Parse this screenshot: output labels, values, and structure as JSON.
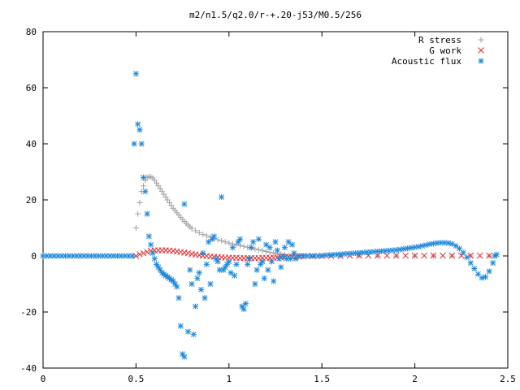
{
  "chart_data": {
    "type": "scatter",
    "title": "m2/n1.5/q2.0/r-+.20-j53/M0.5/256",
    "xlabel": "",
    "ylabel": "",
    "xlim": [
      0,
      2.5
    ],
    "ylim": [
      -40,
      80
    ],
    "x_ticks": [
      "0",
      "0.5",
      "1",
      "1.5",
      "2",
      "2.5"
    ],
    "y_ticks": [
      "80",
      "60",
      "40",
      "20",
      "0",
      "-20",
      "-40"
    ],
    "grid": false,
    "legend_position": "top-right",
    "series": [
      {
        "name": "R stress",
        "marker": "plus",
        "color": "#a0a0a0",
        "points": [
          [
            0.5,
            10
          ],
          [
            0.51,
            15
          ],
          [
            0.52,
            19
          ],
          [
            0.53,
            23
          ],
          [
            0.54,
            25
          ],
          [
            0.55,
            27
          ],
          [
            0.56,
            28
          ],
          [
            0.57,
            28.3
          ],
          [
            0.58,
            28.2
          ],
          [
            0.59,
            27.8
          ],
          [
            0.6,
            27.0
          ],
          [
            0.61,
            26.0
          ],
          [
            0.62,
            25.0
          ],
          [
            0.63,
            24.0
          ],
          [
            0.64,
            23.0
          ],
          [
            0.65,
            22.0
          ],
          [
            0.66,
            21.0
          ],
          [
            0.67,
            20.0
          ],
          [
            0.68,
            19.0
          ],
          [
            0.69,
            18.0
          ],
          [
            0.7,
            17.0
          ],
          [
            0.71,
            16.2
          ],
          [
            0.72,
            15.4
          ],
          [
            0.73,
            14.6
          ],
          [
            0.74,
            13.8
          ],
          [
            0.75,
            13.0
          ],
          [
            0.76,
            12.3
          ],
          [
            0.77,
            11.6
          ],
          [
            0.78,
            11.0
          ],
          [
            0.79,
            10.4
          ],
          [
            0.8,
            9.8
          ],
          [
            0.82,
            9.0
          ],
          [
            0.84,
            8.3
          ],
          [
            0.86,
            7.7
          ],
          [
            0.88,
            7.2
          ],
          [
            0.9,
            6.7
          ],
          [
            0.92,
            6.2
          ],
          [
            0.94,
            5.8
          ],
          [
            0.96,
            5.4
          ],
          [
            0.98,
            5.0
          ],
          [
            1.0,
            4.6
          ],
          [
            1.02,
            4.3
          ],
          [
            1.04,
            4.0
          ],
          [
            1.06,
            3.7
          ],
          [
            1.08,
            3.4
          ],
          [
            1.1,
            3.1
          ],
          [
            1.12,
            2.8
          ],
          [
            1.14,
            2.5
          ],
          [
            1.16,
            2.2
          ],
          [
            1.18,
            1.9
          ],
          [
            1.2,
            1.6
          ],
          [
            1.22,
            1.3
          ],
          [
            1.24,
            1.0
          ],
          [
            1.26,
            0.8
          ],
          [
            1.28,
            0.6
          ],
          [
            1.3,
            0.4
          ],
          [
            1.32,
            0.2
          ],
          [
            1.34,
            0.1
          ],
          [
            1.36,
            0.0
          ],
          [
            1.4,
            0.0
          ],
          [
            1.5,
            0.0
          ],
          [
            1.6,
            0.0
          ],
          [
            1.7,
            0.0
          ],
          [
            1.8,
            0.0
          ],
          [
            1.9,
            0.0
          ],
          [
            2.0,
            0.0
          ],
          [
            2.1,
            0.0
          ],
          [
            2.2,
            0.0
          ],
          [
            2.3,
            0.0
          ],
          [
            2.4,
            0.0
          ]
        ]
      },
      {
        "name": "G work",
        "marker": "cross",
        "color": "#e03030",
        "points": [
          [
            0.5,
            0
          ],
          [
            0.52,
            0.6
          ],
          [
            0.54,
            1.0
          ],
          [
            0.56,
            1.4
          ],
          [
            0.58,
            1.8
          ],
          [
            0.6,
            2.0
          ],
          [
            0.62,
            2.0
          ],
          [
            0.64,
            2.0
          ],
          [
            0.66,
            2.0
          ],
          [
            0.68,
            1.9
          ],
          [
            0.7,
            1.8
          ],
          [
            0.72,
            1.6
          ],
          [
            0.74,
            1.4
          ],
          [
            0.76,
            1.2
          ],
          [
            0.78,
            1.0
          ],
          [
            0.8,
            0.7
          ],
          [
            0.82,
            0.5
          ],
          [
            0.84,
            0.3
          ],
          [
            0.86,
            0.1
          ],
          [
            0.88,
            0.0
          ],
          [
            0.9,
            -0.2
          ],
          [
            0.92,
            -0.3
          ],
          [
            0.94,
            -0.4
          ],
          [
            0.96,
            -0.5
          ],
          [
            0.98,
            -0.6
          ],
          [
            1.0,
            -0.6
          ],
          [
            1.02,
            -0.7
          ],
          [
            1.04,
            -0.7
          ],
          [
            1.06,
            -0.8
          ],
          [
            1.08,
            -0.8
          ],
          [
            1.1,
            -0.8
          ],
          [
            1.12,
            -0.8
          ],
          [
            1.14,
            -0.8
          ],
          [
            1.16,
            -0.8
          ],
          [
            1.18,
            -0.7
          ],
          [
            1.2,
            -0.7
          ],
          [
            1.22,
            -0.7
          ],
          [
            1.24,
            -0.6
          ],
          [
            1.26,
            -0.6
          ],
          [
            1.28,
            -0.5
          ],
          [
            1.3,
            -0.4
          ],
          [
            1.32,
            -0.4
          ],
          [
            1.34,
            -0.3
          ],
          [
            1.36,
            -0.3
          ],
          [
            1.38,
            -0.2
          ],
          [
            1.4,
            -0.2
          ],
          [
            1.45,
            -0.1
          ],
          [
            1.5,
            0.0
          ],
          [
            1.55,
            0.0
          ],
          [
            1.6,
            0.0
          ],
          [
            1.65,
            0.1
          ],
          [
            1.7,
            0.1
          ],
          [
            1.75,
            0.1
          ],
          [
            1.8,
            0.1
          ],
          [
            1.85,
            0.1
          ],
          [
            1.9,
            0.1
          ],
          [
            1.95,
            0.1
          ],
          [
            2.0,
            0.1
          ],
          [
            2.05,
            0.1
          ],
          [
            2.1,
            0.1
          ],
          [
            2.15,
            0.1
          ],
          [
            2.2,
            0.1
          ],
          [
            2.25,
            0.1
          ],
          [
            2.3,
            0.1
          ],
          [
            2.35,
            0.1
          ],
          [
            2.4,
            0.1
          ]
        ]
      },
      {
        "name": "Acoustic flux",
        "marker": "star",
        "color": "#1e88d8",
        "points": [
          [
            0.0,
            0
          ],
          [
            0.02,
            0
          ],
          [
            0.04,
            0
          ],
          [
            0.06,
            0
          ],
          [
            0.08,
            0
          ],
          [
            0.1,
            0
          ],
          [
            0.12,
            0
          ],
          [
            0.14,
            0
          ],
          [
            0.16,
            0
          ],
          [
            0.18,
            0
          ],
          [
            0.2,
            0
          ],
          [
            0.22,
            0
          ],
          [
            0.24,
            0
          ],
          [
            0.26,
            0
          ],
          [
            0.28,
            0
          ],
          [
            0.3,
            0
          ],
          [
            0.32,
            0
          ],
          [
            0.34,
            0
          ],
          [
            0.36,
            0
          ],
          [
            0.38,
            0
          ],
          [
            0.4,
            0
          ],
          [
            0.42,
            0
          ],
          [
            0.44,
            0
          ],
          [
            0.46,
            0
          ],
          [
            0.48,
            0
          ],
          [
            0.49,
            40
          ],
          [
            0.5,
            65
          ],
          [
            0.51,
            47
          ],
          [
            0.52,
            45
          ],
          [
            0.53,
            40
          ],
          [
            0.54,
            28
          ],
          [
            0.55,
            23
          ],
          [
            0.56,
            15
          ],
          [
            0.57,
            7
          ],
          [
            0.58,
            4
          ],
          [
            0.59,
            1
          ],
          [
            0.6,
            -1
          ],
          [
            0.61,
            -3
          ],
          [
            0.62,
            -4
          ],
          [
            0.63,
            -5
          ],
          [
            0.64,
            -6
          ],
          [
            0.65,
            -6.5
          ],
          [
            0.66,
            -7
          ],
          [
            0.67,
            -7.5
          ],
          [
            0.68,
            -8
          ],
          [
            0.69,
            -8.5
          ],
          [
            0.7,
            -9
          ],
          [
            0.71,
            -10
          ],
          [
            0.72,
            -11
          ],
          [
            0.73,
            -15
          ],
          [
            0.74,
            -25
          ],
          [
            0.75,
            -35
          ],
          [
            0.76,
            -36
          ],
          [
            0.76,
            18.5
          ],
          [
            0.78,
            -27
          ],
          [
            0.79,
            -5
          ],
          [
            0.8,
            -10
          ],
          [
            0.81,
            -28
          ],
          [
            0.82,
            -18
          ],
          [
            0.83,
            -8
          ],
          [
            0.84,
            -6
          ],
          [
            0.85,
            -12
          ],
          [
            0.86,
            1
          ],
          [
            0.87,
            -15
          ],
          [
            0.88,
            -3
          ],
          [
            0.89,
            5
          ],
          [
            0.9,
            -10
          ],
          [
            0.91,
            6
          ],
          [
            0.92,
            7
          ],
          [
            0.93,
            -1
          ],
          [
            0.94,
            -2
          ],
          [
            0.95,
            -5
          ],
          [
            0.96,
            21
          ],
          [
            0.97,
            -5
          ],
          [
            0.98,
            -4
          ],
          [
            0.99,
            -3
          ],
          [
            1.0,
            -2
          ],
          [
            1.01,
            -6
          ],
          [
            1.02,
            3
          ],
          [
            1.03,
            -7
          ],
          [
            1.04,
            -3
          ],
          [
            1.05,
            5
          ],
          [
            1.06,
            6
          ],
          [
            1.07,
            -18
          ],
          [
            1.08,
            -19
          ],
          [
            1.09,
            -17
          ],
          [
            1.1,
            -3
          ],
          [
            1.11,
            -1
          ],
          [
            1.12,
            3
          ],
          [
            1.13,
            5
          ],
          [
            1.14,
            -10
          ],
          [
            1.15,
            -5
          ],
          [
            1.16,
            6
          ],
          [
            1.17,
            -3
          ],
          [
            1.18,
            -2
          ],
          [
            1.19,
            -8
          ],
          [
            1.2,
            4
          ],
          [
            1.21,
            -5
          ],
          [
            1.22,
            3
          ],
          [
            1.23,
            -2
          ],
          [
            1.24,
            -9
          ],
          [
            1.25,
            5
          ],
          [
            1.26,
            2
          ],
          [
            1.27,
            -1
          ],
          [
            1.28,
            -4
          ],
          [
            1.29,
            0
          ],
          [
            1.3,
            3
          ],
          [
            1.31,
            -1
          ],
          [
            1.32,
            5
          ],
          [
            1.33,
            -1
          ],
          [
            1.34,
            4
          ],
          [
            1.35,
            1
          ],
          [
            1.36,
            -1
          ],
          [
            1.38,
            0
          ],
          [
            1.4,
            0
          ],
          [
            1.42,
            0
          ],
          [
            1.44,
            0
          ],
          [
            1.46,
            0
          ],
          [
            1.48,
            0
          ],
          [
            1.5,
            0.1
          ],
          [
            1.52,
            0.2
          ],
          [
            1.54,
            0.3
          ],
          [
            1.56,
            0.4
          ],
          [
            1.58,
            0.5
          ],
          [
            1.6,
            0.6
          ],
          [
            1.62,
            0.7
          ],
          [
            1.64,
            0.8
          ],
          [
            1.66,
            0.9
          ],
          [
            1.68,
            1.0
          ],
          [
            1.7,
            1.1
          ],
          [
            1.72,
            1.2
          ],
          [
            1.74,
            1.3
          ],
          [
            1.76,
            1.4
          ],
          [
            1.78,
            1.5
          ],
          [
            1.8,
            1.6
          ],
          [
            1.82,
            1.7
          ],
          [
            1.84,
            1.8
          ],
          [
            1.86,
            1.9
          ],
          [
            1.88,
            2.0
          ],
          [
            1.9,
            2.1
          ],
          [
            1.92,
            2.3
          ],
          [
            1.94,
            2.5
          ],
          [
            1.96,
            2.7
          ],
          [
            1.98,
            2.9
          ],
          [
            2.0,
            3.1
          ],
          [
            2.02,
            3.3
          ],
          [
            2.04,
            3.6
          ],
          [
            2.06,
            3.9
          ],
          [
            2.08,
            4.2
          ],
          [
            2.1,
            4.4
          ],
          [
            2.12,
            4.6
          ],
          [
            2.14,
            4.7
          ],
          [
            2.16,
            4.7
          ],
          [
            2.18,
            4.6
          ],
          [
            2.2,
            4.3
          ],
          [
            2.22,
            3.6
          ],
          [
            2.24,
            2.6
          ],
          [
            2.26,
            1.2
          ],
          [
            2.28,
            -0.5
          ],
          [
            2.3,
            -2.5
          ],
          [
            2.32,
            -4.5
          ],
          [
            2.34,
            -6.5
          ],
          [
            2.36,
            -7.8
          ],
          [
            2.38,
            -7.5
          ],
          [
            2.4,
            -5.5
          ],
          [
            2.42,
            -2.5
          ],
          [
            2.43,
            0
          ],
          [
            2.44,
            0.5
          ]
        ]
      }
    ]
  }
}
